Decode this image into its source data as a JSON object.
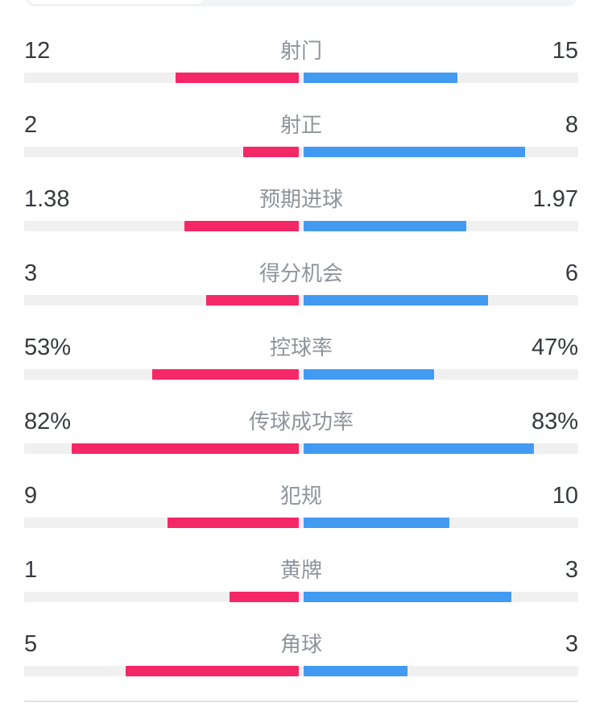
{
  "colors": {
    "home-color": "#F42866",
    "away-color": "#429BF1",
    "track-color": "#F0F0F1",
    "value-text": "#36393F",
    "label-text": "#8F939B",
    "divider-color": "#E2E2E4",
    "seg-track": "#F2F3F5",
    "seg-selected": "#FFFFFF",
    "seg-selected-border": "#ECEEF1"
  },
  "stats": {
    "rows": [
      {
        "label": "射门",
        "left": "12",
        "right": "15"
      },
      {
        "label": "射正",
        "left": "2",
        "right": "8"
      },
      {
        "label": "预期进球",
        "left": "1.38",
        "right": "1.97"
      },
      {
        "label": "得分机会",
        "left": "3",
        "right": "6"
      },
      {
        "label": "控球率",
        "left": "53%",
        "right": "47%"
      },
      {
        "label": "传球成功率",
        "left": "82%",
        "right": "83%"
      },
      {
        "label": "犯规",
        "left": "9",
        "right": "10"
      },
      {
        "label": "黄牌",
        "left": "1",
        "right": "3"
      },
      {
        "label": "角球",
        "left": "5",
        "right": "3"
      }
    ]
  },
  "chart_data": {
    "type": "bar",
    "orientation": "bilateral-horizontal",
    "categories": [
      "射门",
      "射正",
      "预期进球",
      "得分机会",
      "控球率",
      "传球成功率",
      "犯规",
      "黄牌",
      "角球"
    ],
    "series": [
      {
        "name": "home",
        "color": "#F42866",
        "values": [
          12,
          2,
          1.38,
          3,
          53,
          82,
          9,
          1,
          5
        ],
        "display": [
          "12",
          "2",
          "1.38",
          "3",
          "53%",
          "82%",
          "9",
          "1",
          "5"
        ]
      },
      {
        "name": "away",
        "color": "#429BF1",
        "values": [
          15,
          8,
          1.97,
          6,
          47,
          83,
          10,
          3,
          3
        ],
        "display": [
          "15",
          "8",
          "1.97",
          "6",
          "47%",
          "83%",
          "10",
          "3",
          "3"
        ]
      }
    ],
    "value_scaling": "percent rows scaled by value/100; count rows scaled by value/(left+right); bars grow outward from center",
    "legend": false,
    "grid": false
  }
}
